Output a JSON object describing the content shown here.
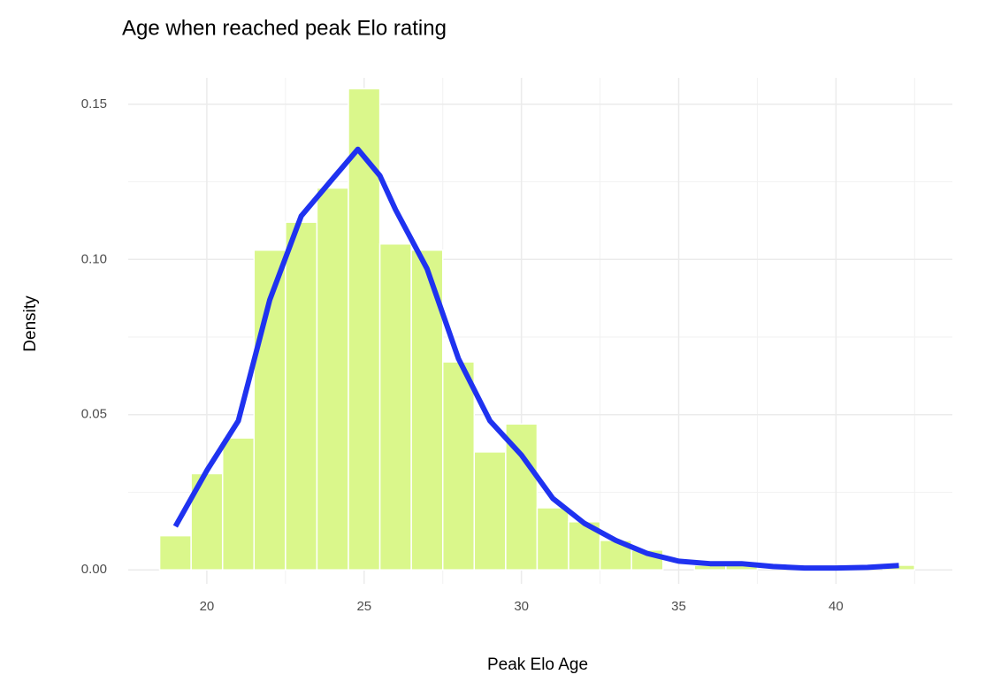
{
  "chart_data": {
    "type": "histogram",
    "title": "Age when reached peak Elo rating",
    "x_label": "Peak Elo Age",
    "y_label": "Density",
    "bins": [
      18.5,
      19.5,
      20.5,
      21.5,
      22.5,
      23.5,
      24.5,
      25.5,
      26.5,
      27.5,
      28.5,
      29.5,
      30.5,
      31.5,
      32.5,
      33.5,
      34.5,
      35.5,
      36.5,
      37.5,
      38.5,
      39.5,
      40.5,
      41.5,
      42.5
    ],
    "values": [
      0.011,
      0.031,
      0.0425,
      0.103,
      0.112,
      0.123,
      0.155,
      0.105,
      0.103,
      0.067,
      0.038,
      0.047,
      0.02,
      0.0155,
      0.0095,
      0.0064,
      0,
      0.0015,
      0.0015,
      0,
      0,
      0,
      0,
      0.0015
    ],
    "color": "#daf78b",
    "density": {
      "color": "#1f32f0",
      "x": [
        19,
        20,
        21,
        22,
        23,
        24,
        24.8,
        25.5,
        26,
        27,
        28,
        29,
        30,
        31,
        32,
        33,
        34,
        35,
        36,
        37,
        38,
        39,
        40,
        41,
        42
      ],
      "values": [
        0.014,
        0.032,
        0.048,
        0.087,
        0.114,
        0.126,
        0.1355,
        0.127,
        0.116,
        0.097,
        0.068,
        0.048,
        0.037,
        0.023,
        0.015,
        0.0095,
        0.0053,
        0.0028,
        0.002,
        0.002,
        0.0011,
        0.0006,
        0.0006,
        0.0008,
        0.0014
      ]
    },
    "xlim": [
      17.5,
      43.7
    ],
    "ylim": [
      -0.0045,
      0.1585
    ],
    "xticks": [
      20,
      25,
      30,
      35,
      40
    ],
    "yticks": [
      {
        "value": 0,
        "label": "0.00"
      },
      {
        "value": 0.05,
        "label": "0.05"
      },
      {
        "value": 0.1,
        "label": "0.10"
      },
      {
        "value": 0.15,
        "label": "0.15"
      }
    ],
    "grid": true
  }
}
